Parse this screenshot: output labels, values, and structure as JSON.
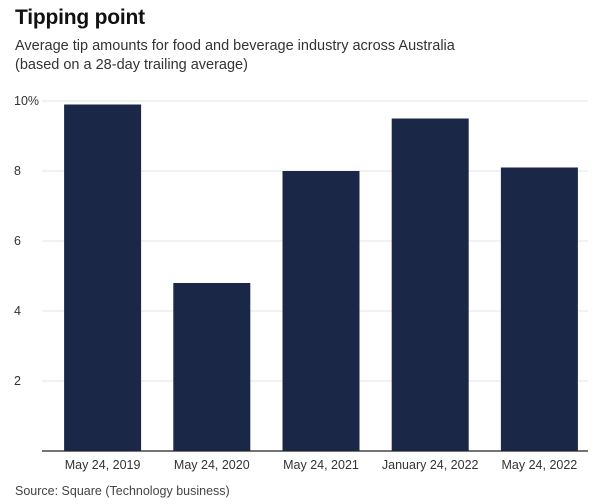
{
  "header": {
    "title": "Tipping point",
    "subtitle_line1": "Average tip amounts for food and beverage industry across Australia",
    "subtitle_line2": "(based on a 28-day trailing average)"
  },
  "footer": {
    "source": "Source: Square (Technology business)"
  },
  "colors": {
    "bar": "#1b2747",
    "grid": "#e6e6e6",
    "axis": "#222222"
  },
  "chart_data": {
    "type": "bar",
    "title": "Tipping point",
    "subtitle": "Average tip amounts for food and beverage industry across Australia (based on a 28-day trailing average)",
    "categories": [
      "May 24, 2019",
      "May 24, 2020",
      "May 24, 2021",
      "January 24, 2022",
      "May 24, 2022"
    ],
    "values": [
      9.9,
      4.8,
      8.0,
      9.5,
      8.1
    ],
    "yticks": [
      "2",
      "4",
      "6",
      "8",
      "10%"
    ],
    "ytick_values": [
      2,
      4,
      6,
      8,
      10
    ],
    "ylim": [
      0,
      10
    ],
    "grid": true,
    "xlabel": "",
    "ylabel": ""
  }
}
